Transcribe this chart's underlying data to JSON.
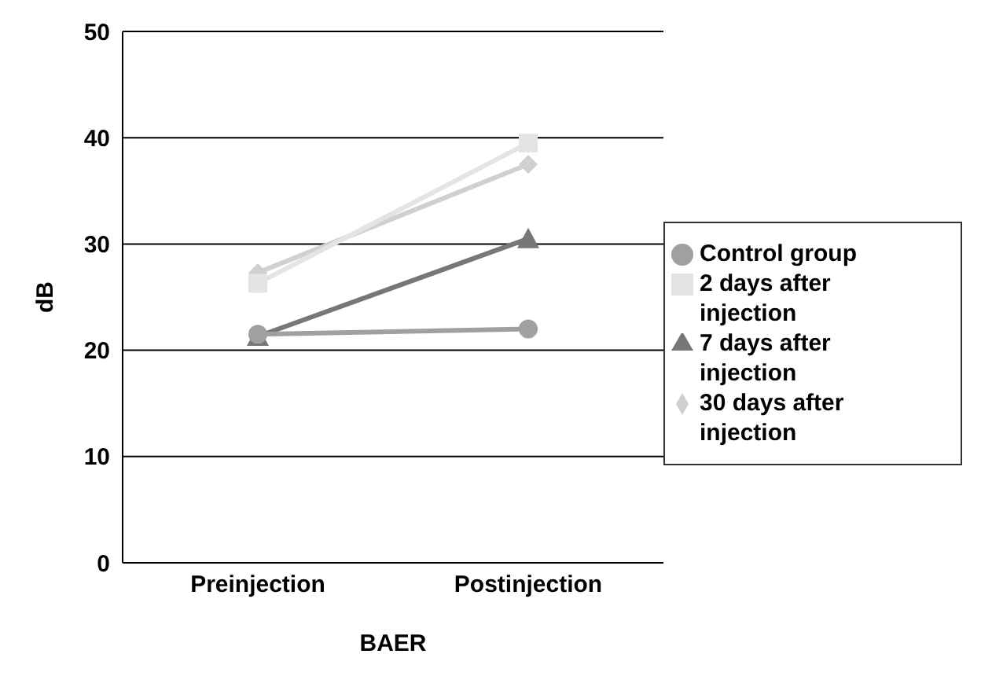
{
  "chart_data": {
    "type": "line",
    "xlabel": "BAER",
    "ylabel": "dB",
    "categories": [
      "Preinjection",
      "Postinjection"
    ],
    "series": [
      {
        "name": "Control group",
        "color": "#a0a0a0",
        "marker": "circle",
        "values": [
          21.5,
          22
        ]
      },
      {
        "name": "2 days after injection",
        "color": "#e4e4e4",
        "marker": "square",
        "values": [
          26.3,
          39.5
        ]
      },
      {
        "name": "7 days after injection",
        "color": "#777777",
        "marker": "triangle",
        "values": [
          21.3,
          30.5
        ]
      },
      {
        "name": "30 days after injection",
        "color": "#d0d0d0",
        "marker": "diamond",
        "values": [
          27.3,
          37.5
        ]
      }
    ],
    "ylim": [
      0,
      50
    ],
    "yticks": [
      0,
      10,
      20,
      30,
      40,
      50
    ],
    "grid": "y",
    "legend": "right"
  }
}
